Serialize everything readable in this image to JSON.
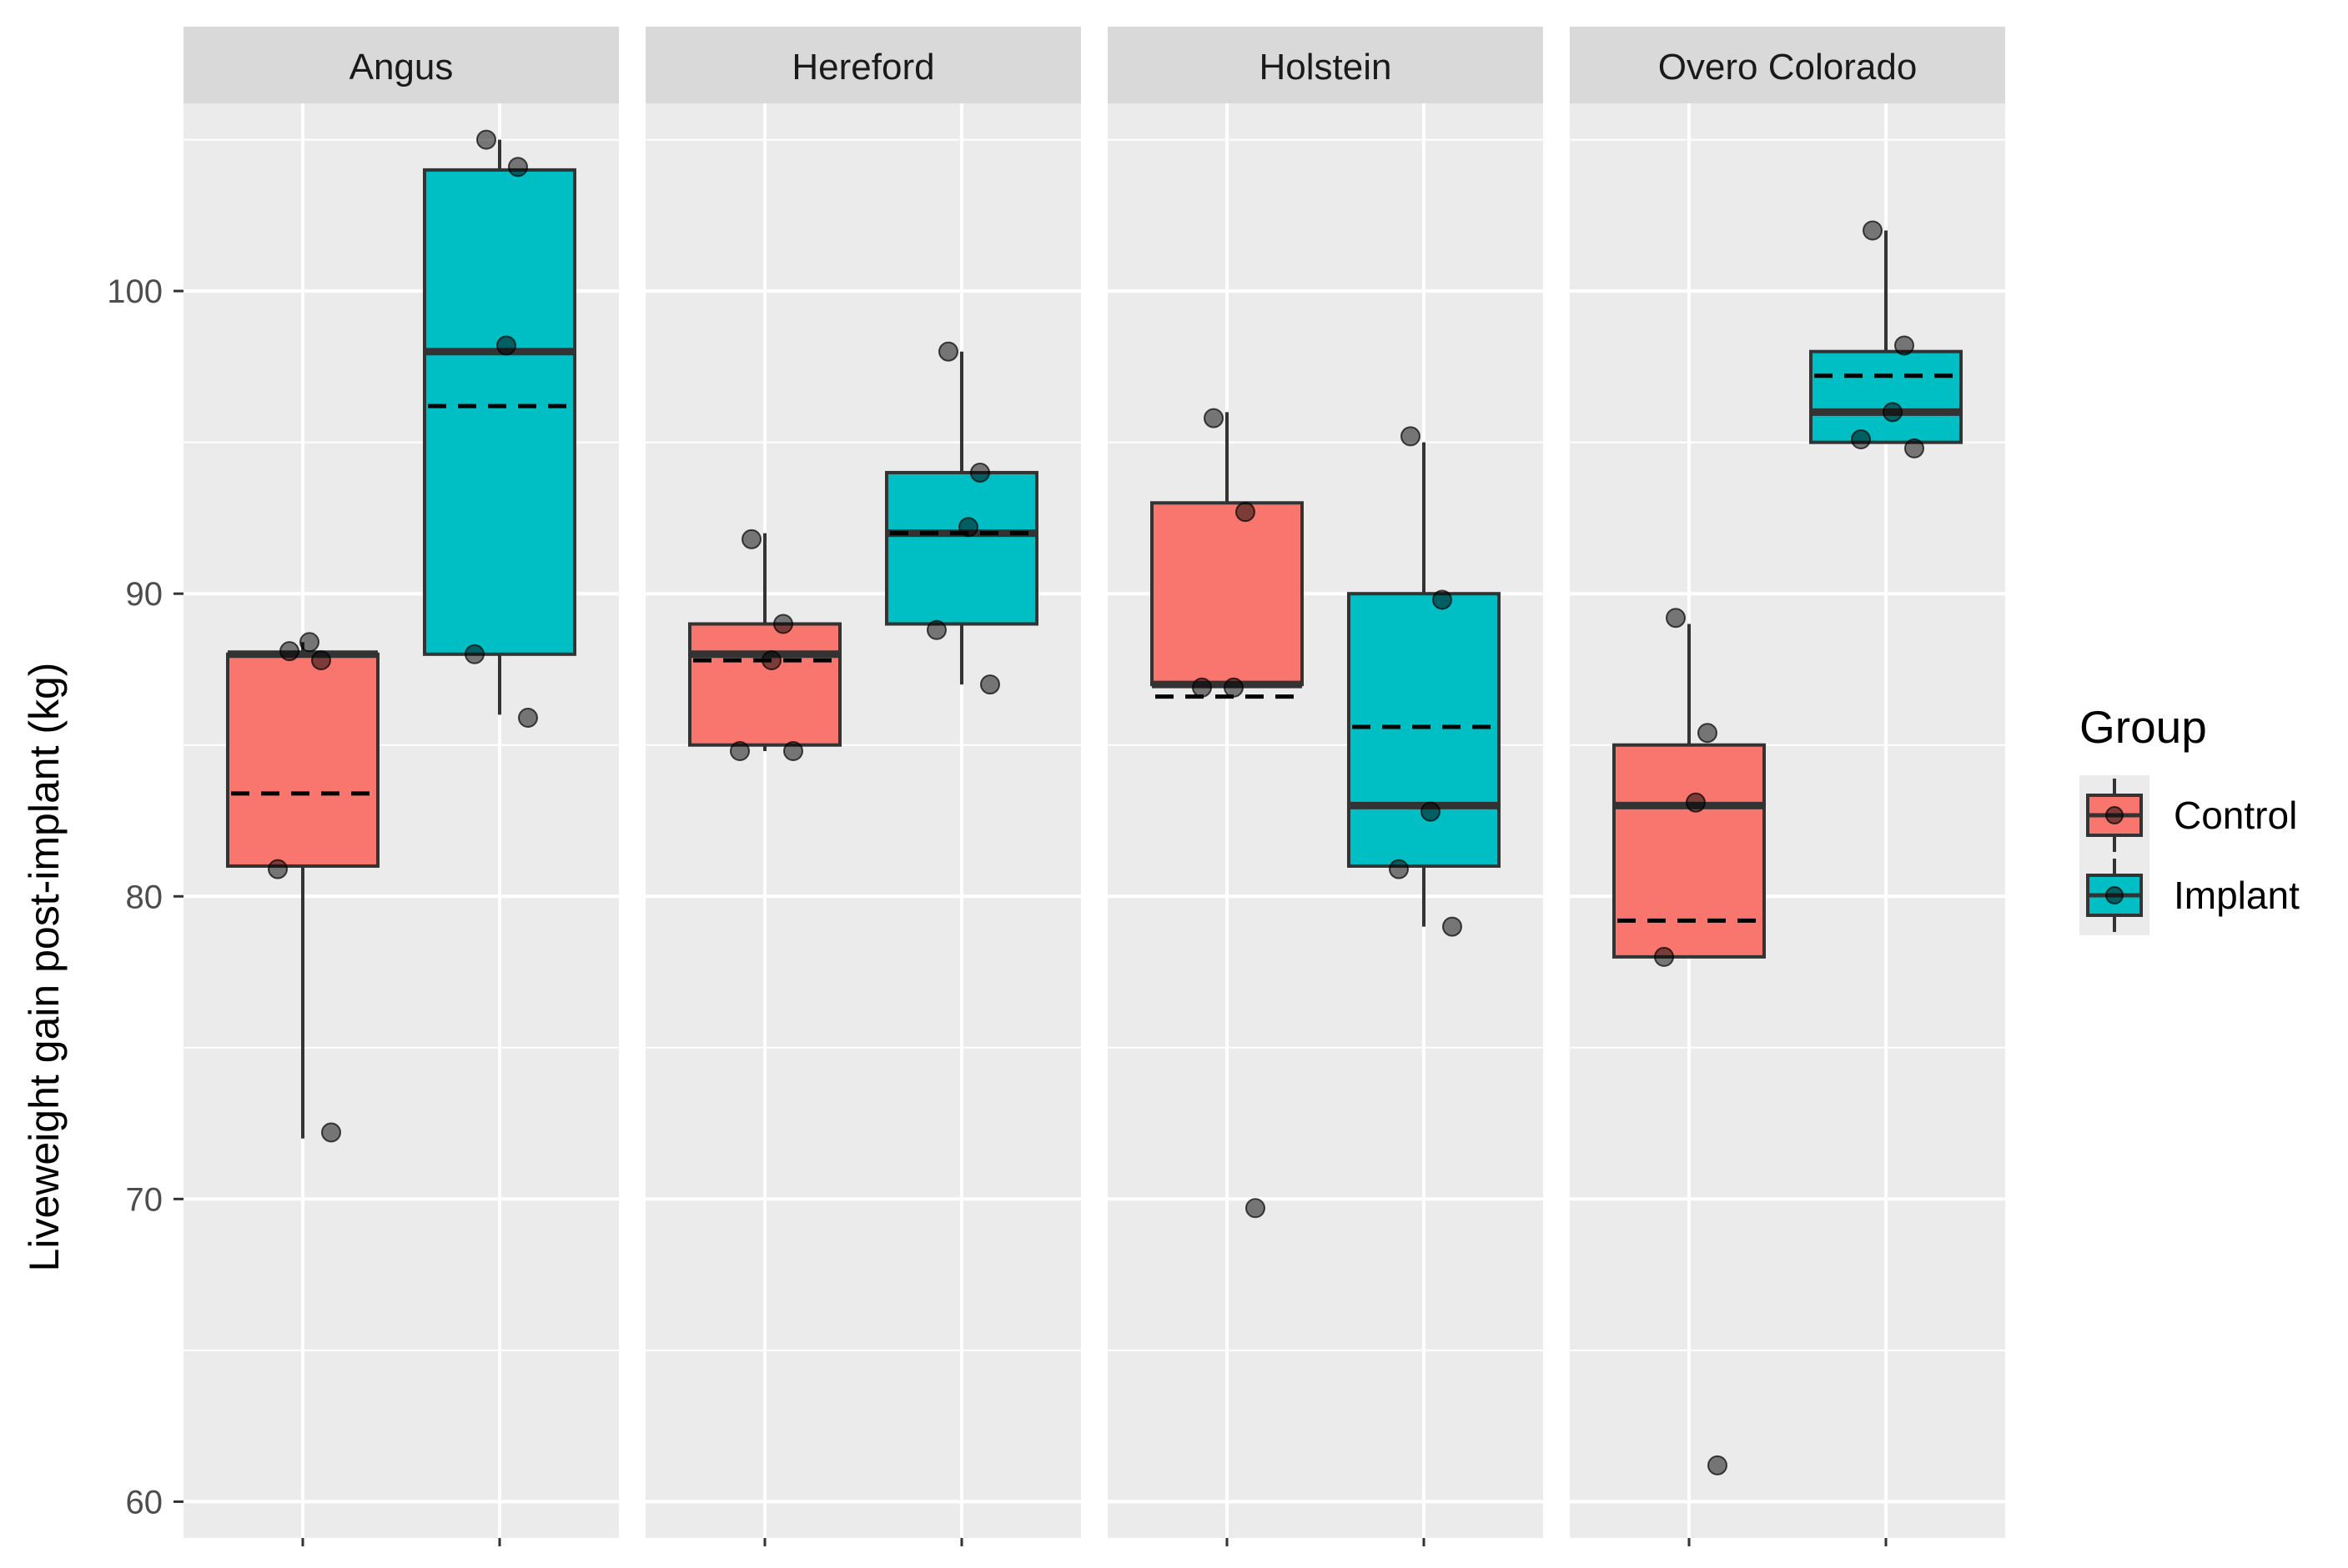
{
  "chart_data": {
    "type": "box",
    "ylabel": "Liveweight gain post-implant (kg)",
    "xlabel": "",
    "ylim": [
      58.8,
      106.2
    ],
    "yticks": [
      60,
      70,
      80,
      90,
      100
    ],
    "grid": true,
    "legend_placement": "right",
    "facets": [
      "Angus",
      "Hereford",
      "Holstein",
      "Overo Colorado"
    ],
    "legend": {
      "title": "Group",
      "items": [
        "Control",
        "Implant"
      ]
    },
    "colors": {
      "Control": "#F8766D",
      "Implant": "#00BFC4",
      "panel": "#EBEBEB",
      "strip": "#D9D9D9"
    },
    "boxes": [
      {
        "facet": "Angus",
        "group": "Control",
        "min": 72,
        "q1": 81,
        "median": 88,
        "q3": 88,
        "max": 88.4,
        "mean": 83.4
      },
      {
        "facet": "Angus",
        "group": "Implant",
        "min": 86,
        "q1": 88,
        "median": 98,
        "q3": 104,
        "max": 105,
        "mean": 96.2
      },
      {
        "facet": "Hereford",
        "group": "Control",
        "min": 84.8,
        "q1": 85,
        "median": 88,
        "q3": 89,
        "max": 92,
        "mean": 87.8
      },
      {
        "facet": "Hereford",
        "group": "Implant",
        "min": 87,
        "q1": 89,
        "median": 92,
        "q3": 94,
        "max": 98,
        "mean": 92
      },
      {
        "facet": "Holstein",
        "group": "Control",
        "min": 87,
        "q1": 87,
        "median": 87,
        "q3": 93,
        "max": 96,
        "mean": 86.6
      },
      {
        "facet": "Holstein",
        "group": "Implant",
        "min": 79,
        "q1": 81,
        "median": 83,
        "q3": 90,
        "max": 95,
        "mean": 85.6
      },
      {
        "facet": "Overo Colorado",
        "group": "Control",
        "min": 78,
        "q1": 78,
        "median": 83,
        "q3": 85,
        "max": 89,
        "mean": 79.2
      },
      {
        "facet": "Overo Colorado",
        "group": "Implant",
        "min": 95,
        "q1": 95,
        "median": 96,
        "q3": 98,
        "max": 102,
        "mean": 97.2
      }
    ],
    "points": [
      {
        "facet": "Angus",
        "group": "Control",
        "values": [
          88.1,
          87.8,
          88.4,
          80.9,
          72.2
        ]
      },
      {
        "facet": "Angus",
        "group": "Implant",
        "values": [
          105,
          104.1,
          98.2,
          88,
          85.9
        ]
      },
      {
        "facet": "Hereford",
        "group": "Control",
        "values": [
          91.8,
          89,
          87.8,
          84.8,
          84.8
        ]
      },
      {
        "facet": "Hereford",
        "group": "Implant",
        "values": [
          98,
          94,
          92.2,
          88.8,
          87
        ]
      },
      {
        "facet": "Holstein",
        "group": "Control",
        "values": [
          95.8,
          92.7,
          86.9,
          86.9,
          69.7
        ]
      },
      {
        "facet": "Holstein",
        "group": "Implant",
        "values": [
          95.2,
          89.8,
          82.8,
          80.9,
          79
        ]
      },
      {
        "facet": "Overo Colorado",
        "group": "Control",
        "values": [
          89.2,
          85.4,
          83.1,
          78,
          61.2
        ]
      },
      {
        "facet": "Overo Colorado",
        "group": "Implant",
        "values": [
          102,
          98.2,
          96,
          95.1,
          94.8
        ]
      }
    ]
  }
}
